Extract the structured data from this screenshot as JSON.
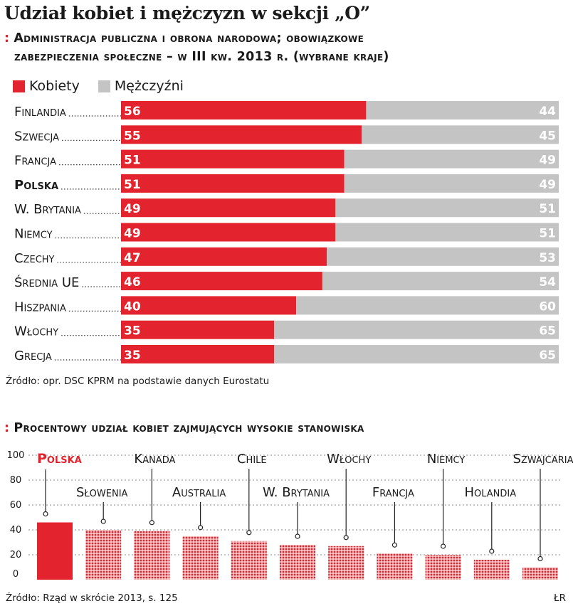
{
  "title": "Udział kobiet i mężczyzn w sekcji „O”",
  "chart_data": [
    {
      "type": "bar",
      "stacked": true,
      "orientation": "horizontal",
      "subtitle_line1": "Administracja publiczna i obrona narodowa; obowiązkowe",
      "subtitle_line2": "zabezpieczenia społeczne – w III kw. 2013 r. (wybrane kraje)",
      "subtitle_marker": ":",
      "legend": [
        {
          "label": "Kobiety",
          "color": "#e3232d"
        },
        {
          "label": "Mężczyźni",
          "color": "#c4c4c4"
        }
      ],
      "categories": [
        "Finlandia",
        "Szwecja",
        "Francja",
        "Polska",
        "W. Brytania",
        "Niemcy",
        "Czechy",
        "Średnia UE",
        "Hiszpania",
        "Włochy",
        "Grecja"
      ],
      "highlight": "Polska",
      "series": [
        {
          "name": "Kobiety",
          "values": [
            56,
            55,
            51,
            51,
            49,
            49,
            47,
            46,
            40,
            35,
            35
          ]
        },
        {
          "name": "Mężczyźni",
          "values": [
            44,
            45,
            49,
            49,
            51,
            51,
            53,
            54,
            60,
            65,
            65
          ]
        }
      ],
      "xlim": [
        0,
        100
      ],
      "source": "Źródło: opr. DSC KPRM na podstawie danych Eurostatu"
    },
    {
      "type": "bar",
      "subtitle": "Procentowy udział kobiet zajmujących wysokie stanowiska",
      "subtitle_marker": ":",
      "categories": [
        "Polska",
        "Słowenia",
        "Kanada",
        "Australia",
        "Chile",
        "W. Brytania",
        "Włochy",
        "Francja",
        "Niemcy",
        "Holandia",
        "Szwajcaria"
      ],
      "label_row": [
        "top",
        "bottom",
        "top",
        "bottom",
        "top",
        "bottom",
        "top",
        "bottom",
        "top",
        "bottom",
        "top"
      ],
      "highlight": "Polska",
      "values": [
        46,
        40,
        39,
        35,
        31,
        28,
        27,
        21,
        20,
        16,
        10
      ],
      "ylim": [
        0,
        100
      ],
      "yticks": [
        "0",
        "20",
        "40",
        "60",
        "80",
        "100"
      ],
      "source": "Źródło: Rząd w skrócie 2013, s. 125"
    }
  ],
  "credit": "ŁR",
  "colors": {
    "red": "#e3232d",
    "grey": "#c4c4c4",
    "dots": "#777777"
  }
}
